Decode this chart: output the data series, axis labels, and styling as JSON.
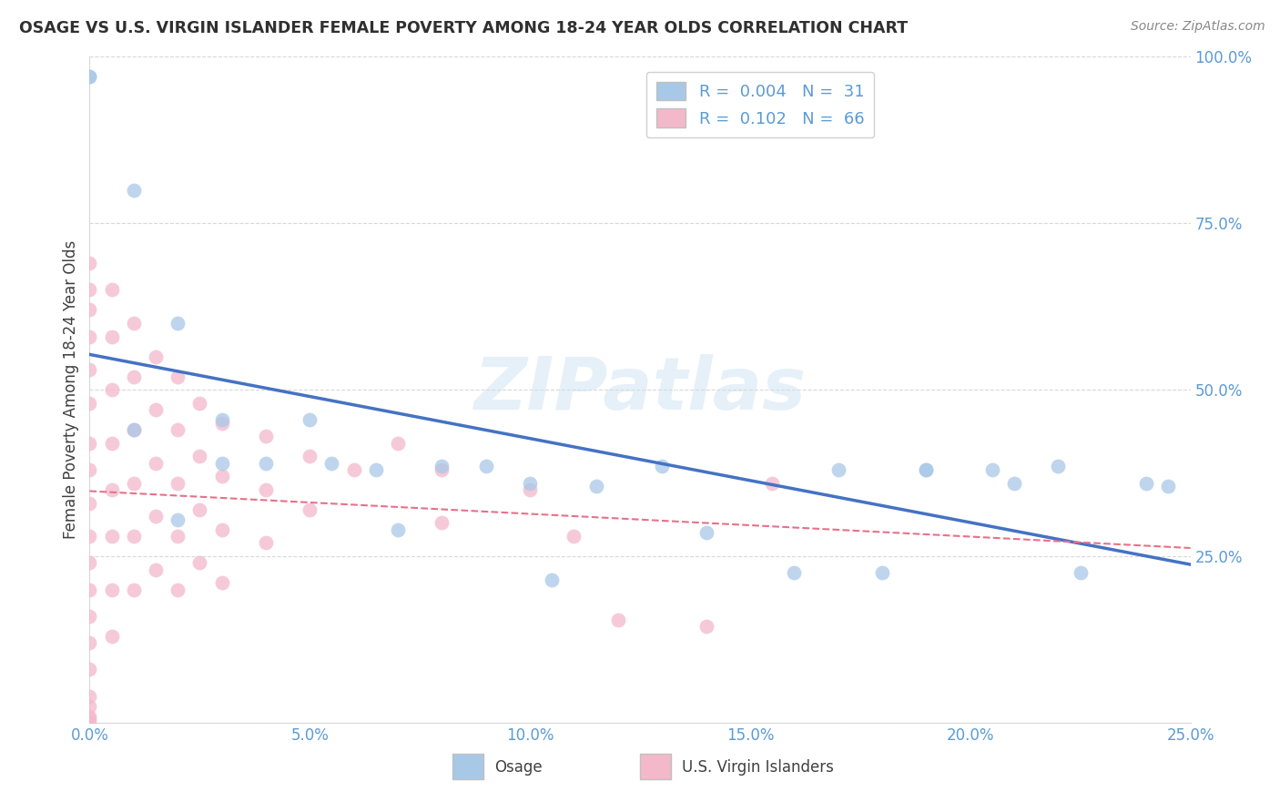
{
  "title": "OSAGE VS U.S. VIRGIN ISLANDER FEMALE POVERTY AMONG 18-24 YEAR OLDS CORRELATION CHART",
  "source": "Source: ZipAtlas.com",
  "ylabel": "Female Poverty Among 18-24 Year Olds",
  "xlim": [
    0.0,
    0.25
  ],
  "ylim": [
    0.0,
    1.0
  ],
  "color_blue": "#a8c8e8",
  "color_pink": "#f4b8cb",
  "color_blue_line": "#4472c4",
  "color_pink_line": "#e8708a",
  "color_grid": "#d8d8d8",
  "color_tick": "#5b9bd5",
  "watermark": "ZIPatlas",
  "osage_x": [
    0.0,
    0.0,
    0.01,
    0.02,
    0.03,
    0.04,
    0.05,
    0.055,
    0.065,
    0.08,
    0.09,
    0.1,
    0.105,
    0.115,
    0.13,
    0.14,
    0.16,
    0.17,
    0.18,
    0.19,
    0.205,
    0.21,
    0.22,
    0.225,
    0.24,
    0.01,
    0.02,
    0.03,
    0.07,
    0.19,
    0.245
  ],
  "osage_y": [
    0.97,
    0.97,
    0.8,
    0.6,
    0.39,
    0.39,
    0.455,
    0.39,
    0.38,
    0.385,
    0.385,
    0.36,
    0.215,
    0.355,
    0.385,
    0.285,
    0.225,
    0.38,
    0.225,
    0.38,
    0.38,
    0.36,
    0.385,
    0.225,
    0.36,
    0.44,
    0.305,
    0.455,
    0.29,
    0.38,
    0.355
  ],
  "vi_x": [
    0.0,
    0.0,
    0.0,
    0.0,
    0.0,
    0.0,
    0.0,
    0.0,
    0.0,
    0.0,
    0.0,
    0.0,
    0.0,
    0.0,
    0.0,
    0.0,
    0.0,
    0.0,
    0.0,
    0.0,
    0.005,
    0.005,
    0.005,
    0.005,
    0.005,
    0.005,
    0.005,
    0.005,
    0.01,
    0.01,
    0.01,
    0.01,
    0.01,
    0.01,
    0.015,
    0.015,
    0.015,
    0.015,
    0.015,
    0.02,
    0.02,
    0.02,
    0.02,
    0.02,
    0.025,
    0.025,
    0.025,
    0.025,
    0.03,
    0.03,
    0.03,
    0.03,
    0.04,
    0.04,
    0.04,
    0.05,
    0.05,
    0.06,
    0.07,
    0.08,
    0.08,
    0.1,
    0.11,
    0.12,
    0.14,
    0.155
  ],
  "vi_y": [
    0.69,
    0.65,
    0.62,
    0.58,
    0.53,
    0.48,
    0.42,
    0.38,
    0.33,
    0.28,
    0.24,
    0.2,
    0.16,
    0.12,
    0.08,
    0.04,
    0.025,
    0.01,
    0.005,
    0.0,
    0.65,
    0.58,
    0.5,
    0.42,
    0.35,
    0.28,
    0.2,
    0.13,
    0.6,
    0.52,
    0.44,
    0.36,
    0.28,
    0.2,
    0.55,
    0.47,
    0.39,
    0.31,
    0.23,
    0.52,
    0.44,
    0.36,
    0.28,
    0.2,
    0.48,
    0.4,
    0.32,
    0.24,
    0.45,
    0.37,
    0.29,
    0.21,
    0.43,
    0.35,
    0.27,
    0.4,
    0.32,
    0.38,
    0.42,
    0.38,
    0.3,
    0.35,
    0.28,
    0.155,
    0.145,
    0.36
  ],
  "legend1_label": "R =  0.004   N =  31",
  "legend2_label": "R =  0.102   N =  66",
  "bottom_label1": "Osage",
  "bottom_label2": "U.S. Virgin Islanders"
}
